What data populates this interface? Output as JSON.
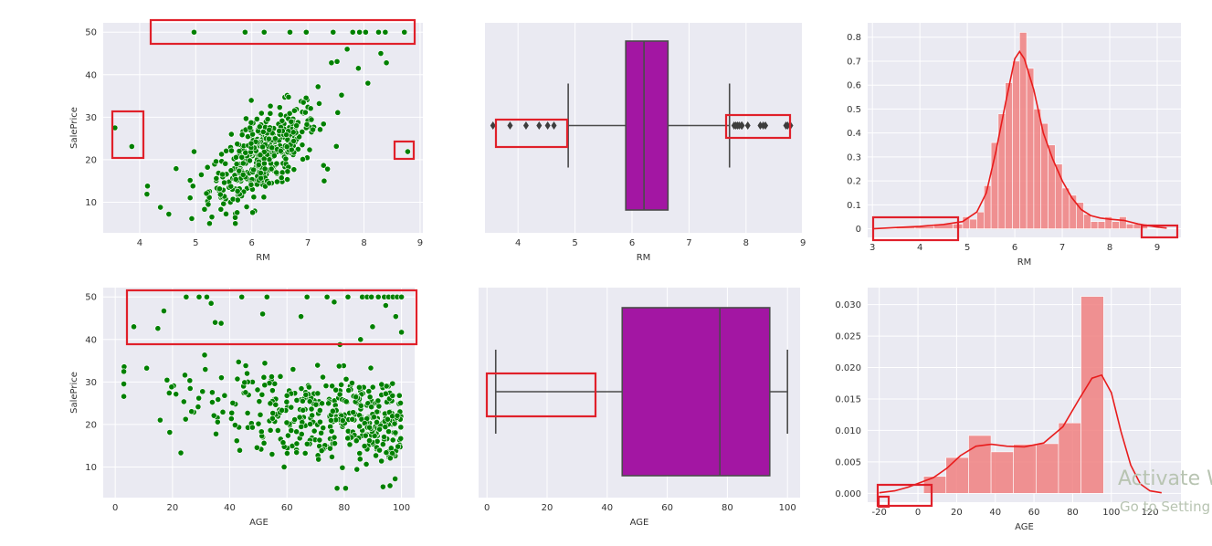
{
  "colors": {
    "panel_bg": "#eaeaf2",
    "grid": "#ffffff",
    "scatter_fill": "#008000",
    "box_fill": "#a316a3",
    "box_line": "#4a4a4a",
    "hist_fill": "#f08080",
    "kde_line": "#e81c1c",
    "highlight": "#e0202a"
  },
  "watermark": {
    "line1": "Activate W",
    "line2": "Go to Setting"
  },
  "chart_data": [
    {
      "id": "scatter-rm",
      "type": "scatter",
      "xlabel": "RM",
      "ylabel": "SalePrice",
      "xlim": [
        3.35,
        9.05
      ],
      "ylim": [
        2.8,
        52.2
      ],
      "xticks": [
        4,
        5,
        6,
        7,
        8,
        9
      ],
      "yticks": [
        10,
        20,
        30,
        40,
        50
      ],
      "points_note": "outliers plus generated core cloud",
      "outliers": [
        [
          3.56,
          27.5
        ],
        [
          3.86,
          23.1
        ],
        [
          4.14,
          13.8
        ],
        [
          4.13,
          11.9
        ],
        [
          4.37,
          8.8
        ],
        [
          4.52,
          7.2
        ],
        [
          4.65,
          17.9
        ],
        [
          4.95,
          13.8
        ],
        [
          4.97,
          21.9
        ],
        [
          4.97,
          50.0
        ],
        [
          5.88,
          50.0
        ],
        [
          6.22,
          50.0
        ],
        [
          6.68,
          50.0
        ],
        [
          6.97,
          50.0
        ],
        [
          7.45,
          50.0
        ],
        [
          7.8,
          50.0
        ],
        [
          7.92,
          50.0
        ],
        [
          8.03,
          50.0
        ],
        [
          8.26,
          50.0
        ],
        [
          8.38,
          50.0
        ],
        [
          8.72,
          50.0
        ],
        [
          8.78,
          21.9
        ],
        [
          8.3,
          45.0
        ],
        [
          8.07,
          38.0
        ],
        [
          7.9,
          41.5
        ],
        [
          7.6,
          35.2
        ],
        [
          7.52,
          43.1
        ],
        [
          7.29,
          15.0
        ],
        [
          7.35,
          17.8
        ],
        [
          7.42,
          42.8
        ],
        [
          7.7,
          46.0
        ],
        [
          8.4,
          42.8
        ]
      ]
    },
    {
      "id": "box-rm",
      "type": "box",
      "xlabel": "RM",
      "xlim": [
        3.42,
        8.98
      ],
      "xticks": [
        4,
        5,
        6,
        7,
        8,
        9
      ],
      "q1": 5.89,
      "median": 6.21,
      "q3": 6.63,
      "whisker_low": 4.88,
      "whisker_high": 7.71,
      "fliers": [
        3.56,
        3.86,
        4.14,
        4.37,
        4.52,
        4.63,
        7.79,
        7.82,
        7.85,
        7.88,
        7.92,
        7.93,
        8.03,
        8.25,
        8.3,
        8.34,
        8.7,
        8.73,
        8.78
      ]
    },
    {
      "id": "hist-rm",
      "type": "histogram",
      "xlabel": "RM",
      "xlim": [
        2.9,
        9.5
      ],
      "ylim": [
        -0.036,
        0.86
      ],
      "xticks": [
        3,
        4,
        5,
        6,
        7,
        8,
        9
      ],
      "yticks": [
        0.0,
        0.1,
        0.2,
        0.3,
        0.4,
        0.5,
        0.6,
        0.7,
        0.8
      ],
      "bins": [
        [
          3.5,
          3.9,
          0.01
        ],
        [
          3.9,
          4.3,
          0.01
        ],
        [
          4.3,
          4.7,
          0.02
        ],
        [
          4.7,
          4.9,
          0.02
        ],
        [
          4.9,
          5.05,
          0.05
        ],
        [
          5.05,
          5.2,
          0.04
        ],
        [
          5.2,
          5.35,
          0.07
        ],
        [
          5.35,
          5.5,
          0.18
        ],
        [
          5.5,
          5.65,
          0.36
        ],
        [
          5.65,
          5.8,
          0.48
        ],
        [
          5.8,
          5.95,
          0.61
        ],
        [
          5.95,
          6.1,
          0.7
        ],
        [
          6.1,
          6.25,
          0.82
        ],
        [
          6.25,
          6.4,
          0.67
        ],
        [
          6.4,
          6.55,
          0.5
        ],
        [
          6.55,
          6.7,
          0.44
        ],
        [
          6.7,
          6.85,
          0.35
        ],
        [
          6.85,
          7.0,
          0.27
        ],
        [
          7.0,
          7.15,
          0.17
        ],
        [
          7.15,
          7.3,
          0.14
        ],
        [
          7.3,
          7.45,
          0.11
        ],
        [
          7.45,
          7.6,
          0.06
        ],
        [
          7.6,
          7.75,
          0.03
        ],
        [
          7.75,
          7.9,
          0.03
        ],
        [
          7.9,
          8.05,
          0.05
        ],
        [
          8.05,
          8.2,
          0.03
        ],
        [
          8.2,
          8.35,
          0.05
        ],
        [
          8.35,
          8.5,
          0.02
        ],
        [
          8.5,
          8.65,
          0.02
        ],
        [
          8.65,
          8.8,
          0.02
        ]
      ],
      "kde": [
        [
          3.0,
          0.0
        ],
        [
          3.5,
          0.005
        ],
        [
          4.0,
          0.01
        ],
        [
          4.5,
          0.018
        ],
        [
          4.9,
          0.03
        ],
        [
          5.2,
          0.07
        ],
        [
          5.4,
          0.15
        ],
        [
          5.6,
          0.32
        ],
        [
          5.8,
          0.52
        ],
        [
          6.0,
          0.71
        ],
        [
          6.1,
          0.74
        ],
        [
          6.2,
          0.71
        ],
        [
          6.4,
          0.58
        ],
        [
          6.6,
          0.4
        ],
        [
          6.8,
          0.29
        ],
        [
          7.0,
          0.2
        ],
        [
          7.2,
          0.13
        ],
        [
          7.4,
          0.08
        ],
        [
          7.6,
          0.055
        ],
        [
          7.8,
          0.045
        ],
        [
          8.0,
          0.04
        ],
        [
          8.3,
          0.035
        ],
        [
          8.6,
          0.02
        ],
        [
          9.0,
          0.007
        ],
        [
          9.2,
          0.003
        ]
      ]
    },
    {
      "id": "scatter-age",
      "type": "scatter",
      "xlabel": "AGE",
      "ylabel": "SalePrice",
      "xlim": [
        -4.2,
        104.6
      ],
      "ylim": [
        2.8,
        52.2
      ],
      "xticks": [
        0,
        20,
        40,
        60,
        80,
        100
      ],
      "yticks": [
        10,
        20,
        30,
        40,
        50
      ],
      "outliers": [
        [
          6.5,
          43.0
        ],
        [
          14.9,
          42.6
        ],
        [
          17.0,
          46.7
        ],
        [
          24.8,
          50.0
        ],
        [
          29.3,
          50.0
        ],
        [
          32.0,
          50.0
        ],
        [
          33.5,
          48.5
        ],
        [
          34.9,
          44.0
        ],
        [
          37.0,
          43.8
        ],
        [
          44.2,
          50.0
        ],
        [
          53.0,
          50.0
        ],
        [
          51.5,
          46.0
        ],
        [
          64.9,
          45.4
        ],
        [
          67.0,
          50.0
        ],
        [
          74.0,
          50.0
        ],
        [
          76.5,
          48.8
        ],
        [
          81.3,
          50.0
        ],
        [
          86.3,
          50.0
        ],
        [
          88.0,
          50.0
        ],
        [
          89.5,
          50.0
        ],
        [
          91.9,
          50.0
        ],
        [
          94.0,
          50.0
        ],
        [
          95.5,
          50.0
        ],
        [
          97.0,
          50.0
        ],
        [
          98.5,
          50.0
        ],
        [
          100.0,
          50.0
        ],
        [
          89.9,
          43.0
        ],
        [
          94.5,
          48.0
        ],
        [
          98.0,
          45.4
        ],
        [
          85.7,
          40.0
        ],
        [
          78.5,
          38.8
        ],
        [
          100.0,
          41.7
        ],
        [
          3.0,
          26.6
        ],
        [
          59.0,
          10.0
        ],
        [
          71.0,
          11.8
        ],
        [
          77.5,
          5.0
        ],
        [
          96.0,
          5.6
        ]
      ]
    },
    {
      "id": "box-age",
      "type": "box",
      "xlabel": "AGE",
      "xlim": [
        -2.8,
        104.2
      ],
      "xticks": [
        0,
        20,
        40,
        60,
        80,
        100
      ],
      "q1": 45.0,
      "median": 77.5,
      "q3": 94.1,
      "whisker_low": 2.9,
      "whisker_high": 100.0,
      "fliers": []
    },
    {
      "id": "hist-age",
      "type": "histogram",
      "xlabel": "AGE",
      "xlim": [
        -26.0,
        136.0
      ],
      "ylim": [
        -0.0014,
        0.0327
      ],
      "xticks": [
        -20,
        0,
        20,
        40,
        60,
        80,
        100,
        120
      ],
      "yticks": [
        0.0,
        0.005,
        0.01,
        0.015,
        0.02,
        0.025,
        0.03
      ],
      "ytick_labels": [
        "0.000",
        "0.005",
        "0.010",
        "0.015",
        "0.020",
        "0.025",
        "0.030"
      ],
      "bins": [
        [
          2.9,
          14.5,
          0.0027
        ],
        [
          14.5,
          26.2,
          0.0057
        ],
        [
          26.2,
          37.8,
          0.0092
        ],
        [
          37.8,
          49.4,
          0.0066
        ],
        [
          49.4,
          61.1,
          0.0078
        ],
        [
          61.1,
          72.7,
          0.0079
        ],
        [
          72.7,
          84.3,
          0.0112
        ],
        [
          84.3,
          96.0,
          0.0313
        ]
      ],
      "kde": [
        [
          -20.0,
          0.0001
        ],
        [
          -12.0,
          0.0004
        ],
        [
          -5.0,
          0.001
        ],
        [
          2.0,
          0.0018
        ],
        [
          8.0,
          0.0025
        ],
        [
          15.0,
          0.004
        ],
        [
          22.0,
          0.006
        ],
        [
          30.0,
          0.0075
        ],
        [
          38.0,
          0.0078
        ],
        [
          46.0,
          0.0075
        ],
        [
          55.0,
          0.0074
        ],
        [
          65.0,
          0.008
        ],
        [
          75.0,
          0.0106
        ],
        [
          83.0,
          0.0148
        ],
        [
          90.0,
          0.0183
        ],
        [
          95.0,
          0.0188
        ],
        [
          100.0,
          0.016
        ],
        [
          105.0,
          0.0098
        ],
        [
          110.0,
          0.0045
        ],
        [
          115.0,
          0.0015
        ],
        [
          120.0,
          0.0004
        ],
        [
          126.0,
          0.0001
        ]
      ]
    }
  ]
}
